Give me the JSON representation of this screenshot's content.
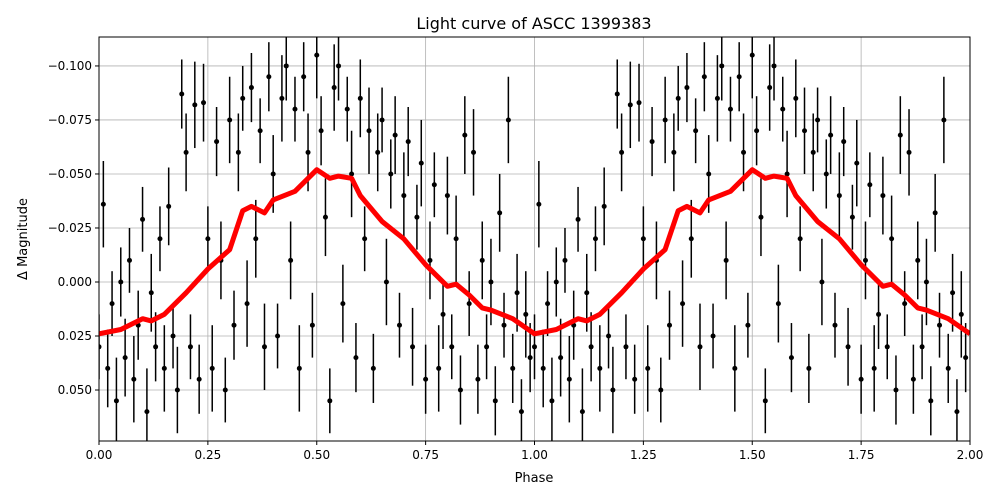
{
  "chart_data": {
    "type": "scatter",
    "title": "Light curve of ASCC 1399383",
    "xlabel": "Phase",
    "ylabel": "Δ Magnitude",
    "xlim": [
      0,
      2
    ],
    "ylim": [
      0.0736,
      -0.1134
    ],
    "y_inverted": true,
    "grid": true,
    "xticks": [
      0,
      0.25,
      0.5,
      0.75,
      1.0,
      1.25,
      1.5,
      1.75,
      2.0
    ],
    "xtick_labels": [
      "0.00",
      "0.25",
      "0.50",
      "0.75",
      "1.00",
      "1.25",
      "1.50",
      "1.75",
      "2.00"
    ],
    "yticks": [
      -0.1,
      -0.075,
      -0.05,
      -0.025,
      0,
      0.025,
      0.05
    ],
    "ytick_labels": [
      "−0.100",
      "−0.075",
      "−0.050",
      "−0.025",
      "0.000",
      "0.025",
      "0.050"
    ],
    "points_color": "#000000",
    "model_color": "#ff0000",
    "folded_periods": 2,
    "points": {
      "phase": [
        0.0,
        0.01,
        0.02,
        0.03,
        0.04,
        0.05,
        0.06,
        0.07,
        0.08,
        0.09,
        0.1,
        0.11,
        0.12,
        0.13,
        0.14,
        0.15,
        0.16,
        0.17,
        0.18,
        0.19,
        0.2,
        0.21,
        0.22,
        0.23,
        0.24,
        0.25,
        0.26,
        0.27,
        0.28,
        0.29,
        0.3,
        0.31,
        0.32,
        0.33,
        0.34,
        0.35,
        0.36,
        0.37,
        0.38,
        0.39,
        0.4,
        0.41,
        0.42,
        0.43,
        0.44,
        0.45,
        0.46,
        0.47,
        0.48,
        0.49,
        0.5,
        0.51,
        0.52,
        0.53,
        0.54,
        0.55,
        0.56,
        0.57,
        0.58,
        0.59,
        0.6,
        0.61,
        0.62,
        0.63,
        0.64,
        0.65,
        0.66,
        0.67,
        0.68,
        0.69,
        0.7,
        0.71,
        0.72,
        0.73,
        0.74,
        0.75,
        0.76,
        0.77,
        0.78,
        0.79,
        0.8,
        0.81,
        0.82,
        0.83,
        0.84,
        0.85,
        0.86,
        0.87,
        0.88,
        0.89,
        0.9,
        0.91,
        0.92,
        0.93,
        0.94,
        0.95,
        0.96,
        0.97,
        0.98,
        0.99
      ],
      "mag": [
        0.03,
        -0.036,
        0.04,
        0.01,
        0.055,
        0.0,
        0.035,
        -0.01,
        0.045,
        0.02,
        -0.029,
        0.06,
        0.005,
        0.03,
        -0.02,
        0.04,
        -0.035,
        0.025,
        0.05,
        -0.087,
        -0.06,
        0.03,
        -0.082,
        0.045,
        -0.083,
        -0.02,
        0.04,
        -0.065,
        -0.01,
        0.05,
        -0.075,
        0.02,
        -0.06,
        -0.085,
        0.01,
        -0.09,
        -0.02,
        -0.07,
        0.03,
        -0.095,
        -0.05,
        0.025,
        -0.085,
        -0.1,
        -0.01,
        -0.08,
        0.04,
        -0.095,
        -0.06,
        0.02,
        -0.105,
        -0.07,
        -0.03,
        0.055,
        -0.09,
        -0.1,
        0.01,
        -0.08,
        -0.05,
        0.035,
        -0.085,
        -0.02,
        -0.07,
        0.04,
        -0.06,
        -0.075,
        0.0,
        -0.05,
        -0.068,
        0.02,
        -0.04,
        -0.065,
        0.03,
        -0.03,
        -0.055,
        0.045,
        -0.01,
        -0.045,
        0.04,
        0.015,
        -0.04,
        0.03,
        -0.02,
        0.05,
        -0.068,
        0.01,
        -0.06,
        0.045,
        -0.01,
        0.03,
        0.0,
        0.055,
        -0.032,
        0.02,
        -0.075,
        0.04,
        0.005,
        0.06,
        0.015,
        0.035
      ],
      "err": [
        0.015,
        0.02,
        0.018,
        0.015,
        0.02,
        0.016,
        0.018,
        0.015,
        0.02,
        0.016,
        0.015,
        0.02,
        0.018,
        0.016,
        0.015,
        0.02,
        0.018,
        0.015,
        0.02,
        0.016,
        0.018,
        0.015,
        0.02,
        0.016,
        0.018,
        0.015,
        0.02,
        0.016,
        0.018,
        0.015,
        0.02,
        0.016,
        0.018,
        0.015,
        0.02,
        0.016,
        0.018,
        0.015,
        0.02,
        0.016,
        0.018,
        0.015,
        0.02,
        0.016,
        0.018,
        0.015,
        0.02,
        0.016,
        0.018,
        0.015,
        0.02,
        0.016,
        0.018,
        0.015,
        0.02,
        0.016,
        0.018,
        0.015,
        0.02,
        0.016,
        0.018,
        0.015,
        0.02,
        0.016,
        0.018,
        0.015,
        0.02,
        0.016,
        0.018,
        0.015,
        0.02,
        0.016,
        0.018,
        0.015,
        0.02,
        0.016,
        0.018,
        0.015,
        0.02,
        0.016,
        0.018,
        0.015,
        0.02,
        0.016,
        0.018,
        0.015,
        0.02,
        0.016,
        0.018,
        0.015,
        0.02,
        0.016,
        0.018,
        0.015,
        0.02,
        0.016,
        0.018,
        0.015,
        0.02,
        0.016
      ]
    },
    "model": {
      "phase": [
        0.0,
        0.05,
        0.1,
        0.12,
        0.15,
        0.2,
        0.25,
        0.3,
        0.33,
        0.35,
        0.38,
        0.4,
        0.45,
        0.5,
        0.53,
        0.55,
        0.58,
        0.6,
        0.65,
        0.7,
        0.75,
        0.8,
        0.82,
        0.85,
        0.88,
        0.9,
        0.95,
        1.0
      ],
      "mag": [
        0.024,
        0.022,
        0.017,
        0.018,
        0.015,
        0.005,
        -0.006,
        -0.015,
        -0.033,
        -0.035,
        -0.032,
        -0.038,
        -0.042,
        -0.052,
        -0.048,
        -0.049,
        -0.048,
        -0.04,
        -0.028,
        -0.02,
        -0.008,
        0.002,
        0.001,
        0.006,
        0.012,
        0.013,
        0.017,
        0.024
      ]
    }
  }
}
